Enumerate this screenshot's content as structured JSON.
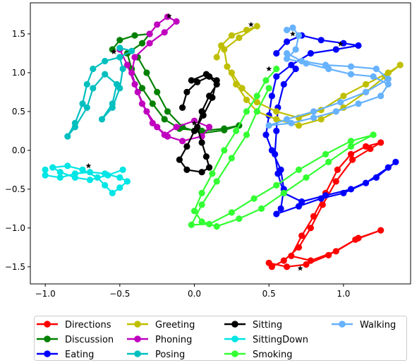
{
  "chart_data": {
    "type": "line",
    "title": "",
    "xlabel": "",
    "ylabel": "",
    "xlim": [
      -1.1,
      1.45
    ],
    "ylim": [
      -1.72,
      1.9
    ],
    "xticks": [
      -1.0,
      -0.5,
      0.0,
      0.5,
      1.0
    ],
    "xtick_labels": [
      "−1.0",
      "−0.5",
      "0.0",
      "0.5",
      "1.0"
    ],
    "yticks": [
      -1.5,
      -1.0,
      -0.5,
      0.0,
      0.5,
      1.0,
      1.5
    ],
    "ytick_labels": [
      "−1.5",
      "−1.0",
      "−0.5",
      "0.0",
      "0.5",
      "1.0",
      "1.5"
    ],
    "grid": false,
    "legend": {
      "placement": "bottom",
      "columns": 4
    },
    "series": [
      {
        "name": "Directions",
        "color": "#ff0000",
        "start": [
          0.71,
          -1.52
        ],
        "points": [
          [
            0.5,
            -1.45
          ],
          [
            0.62,
            -1.5
          ],
          [
            0.75,
            -1.47
          ],
          [
            0.9,
            -1.35
          ],
          [
            1.08,
            -1.15
          ],
          [
            1.25,
            -1.03
          ],
          [
            1.1,
            -1.13
          ],
          [
            0.95,
            -1.3
          ],
          [
            0.78,
            -1.42
          ],
          [
            0.65,
            -1.36
          ],
          [
            0.72,
            -1.1
          ],
          [
            0.8,
            -0.85
          ],
          [
            0.88,
            -0.55
          ],
          [
            0.96,
            -0.25
          ],
          [
            1.05,
            -0.05
          ],
          [
            1.15,
            0.05
          ],
          [
            1.25,
            0.1
          ],
          [
            1.18,
            0.02
          ],
          [
            1.06,
            -0.12
          ],
          [
            0.95,
            -0.4
          ],
          [
            0.86,
            -0.7
          ],
          [
            0.78,
            -1.0
          ],
          [
            0.7,
            -1.25
          ],
          [
            0.6,
            -1.42
          ],
          [
            0.52,
            -1.5
          ]
        ]
      },
      {
        "name": "Discussion",
        "color": "#008000",
        "start": [
          -0.54,
          1.27
        ],
        "points": [
          [
            -0.55,
            1.3
          ],
          [
            -0.5,
            1.42
          ],
          [
            -0.4,
            1.48
          ],
          [
            -0.3,
            1.5
          ],
          [
            -0.35,
            1.38
          ],
          [
            -0.45,
            1.25
          ],
          [
            -0.42,
            1.05
          ],
          [
            -0.35,
            0.8
          ],
          [
            -0.28,
            0.6
          ],
          [
            -0.2,
            0.4
          ],
          [
            -0.1,
            0.28
          ],
          [
            0.05,
            0.25
          ],
          [
            0.2,
            0.28
          ],
          [
            0.3,
            0.32
          ],
          [
            0.2,
            0.26
          ],
          [
            0.05,
            0.22
          ],
          [
            -0.08,
            0.3
          ],
          [
            -0.18,
            0.5
          ],
          [
            -0.25,
            0.75
          ],
          [
            -0.32,
            1.0
          ],
          [
            -0.38,
            1.2
          ]
        ]
      },
      {
        "name": "Eating",
        "color": "#0000ff",
        "start": [
          0.98,
          1.37
        ],
        "points": [
          [
            0.55,
            1.25
          ],
          [
            0.62,
            1.4
          ],
          [
            0.72,
            1.48
          ],
          [
            0.85,
            1.42
          ],
          [
            1.0,
            1.38
          ],
          [
            1.1,
            1.35
          ],
          [
            0.95,
            1.3
          ],
          [
            0.78,
            1.25
          ],
          [
            0.65,
            1.1
          ],
          [
            0.55,
            0.95
          ],
          [
            0.52,
            0.7
          ],
          [
            0.5,
            0.45
          ],
          [
            0.48,
            0.2
          ],
          [
            0.52,
            0.0
          ],
          [
            0.58,
            -0.25
          ],
          [
            0.6,
            -0.5
          ],
          [
            0.58,
            -0.75
          ],
          [
            0.55,
            -0.82
          ],
          [
            0.7,
            -0.72
          ],
          [
            0.85,
            -0.62
          ],
          [
            1.0,
            -0.55
          ],
          [
            1.15,
            -0.42
          ],
          [
            1.3,
            -0.22
          ],
          [
            1.35,
            -0.15
          ],
          [
            1.22,
            -0.35
          ],
          [
            1.05,
            -0.5
          ],
          [
            0.88,
            -0.58
          ],
          [
            0.72,
            -0.66
          ],
          [
            0.6,
            -0.55
          ],
          [
            0.56,
            -0.3
          ],
          [
            0.54,
            -0.05
          ],
          [
            0.55,
            0.25
          ],
          [
            0.56,
            0.55
          ],
          [
            0.6,
            0.85
          ],
          [
            0.68,
            1.05
          ]
        ]
      },
      {
        "name": "Greeting",
        "color": "#bfbf00",
        "start": [
          0.38,
          1.62
        ],
        "points": [
          [
            0.15,
            1.2
          ],
          [
            0.18,
            1.35
          ],
          [
            0.25,
            1.48
          ],
          [
            0.35,
            1.55
          ],
          [
            0.42,
            1.6
          ],
          [
            0.3,
            1.45
          ],
          [
            0.2,
            1.3
          ],
          [
            0.22,
            1.08
          ],
          [
            0.28,
            0.85
          ],
          [
            0.35,
            0.65
          ],
          [
            0.42,
            0.5
          ],
          [
            0.55,
            0.4
          ],
          [
            0.7,
            0.32
          ],
          [
            0.85,
            0.4
          ],
          [
            1.0,
            0.55
          ],
          [
            1.15,
            0.75
          ],
          [
            1.28,
            0.95
          ],
          [
            1.38,
            1.1
          ],
          [
            1.3,
            1.0
          ],
          [
            1.15,
            0.85
          ],
          [
            1.0,
            0.7
          ],
          [
            0.85,
            0.52
          ],
          [
            0.7,
            0.42
          ],
          [
            0.55,
            0.5
          ],
          [
            0.42,
            0.62
          ],
          [
            0.32,
            0.8
          ],
          [
            0.25,
            1.0
          ]
        ]
      },
      {
        "name": "Phoning",
        "color": "#bf00bf",
        "start": [
          -0.17,
          1.73
        ],
        "points": [
          [
            -0.3,
            1.5
          ],
          [
            -0.25,
            1.62
          ],
          [
            -0.18,
            1.72
          ],
          [
            -0.12,
            1.66
          ],
          [
            -0.2,
            1.52
          ],
          [
            -0.3,
            1.38
          ],
          [
            -0.4,
            1.2
          ],
          [
            -0.42,
            1.0
          ],
          [
            -0.38,
            0.75
          ],
          [
            -0.32,
            0.5
          ],
          [
            -0.25,
            0.3
          ],
          [
            -0.18,
            0.18
          ],
          [
            -0.08,
            0.12
          ],
          [
            0.05,
            0.18
          ],
          [
            0.1,
            0.3
          ],
          [
            0.0,
            0.38
          ],
          [
            -0.12,
            0.3
          ],
          [
            -0.2,
            0.2
          ],
          [
            -0.28,
            0.35
          ],
          [
            -0.35,
            0.6
          ],
          [
            -0.4,
            0.85
          ],
          [
            -0.45,
            1.1
          ],
          [
            -0.5,
            1.3
          ]
        ]
      },
      {
        "name": "Posing",
        "color": "#00bfbf",
        "start": [
          -0.54,
          1.27
        ],
        "points": [
          [
            -0.5,
            1.32
          ],
          [
            -0.42,
            1.28
          ],
          [
            -0.5,
            1.2
          ],
          [
            -0.6,
            1.15
          ],
          [
            -0.68,
            1.05
          ],
          [
            -0.72,
            0.85
          ],
          [
            -0.75,
            0.6
          ],
          [
            -0.8,
            0.35
          ],
          [
            -0.85,
            0.18
          ],
          [
            -0.8,
            0.3
          ],
          [
            -0.72,
            0.55
          ],
          [
            -0.68,
            0.8
          ],
          [
            -0.6,
            0.98
          ],
          [
            -0.52,
            0.85
          ],
          [
            -0.55,
            0.6
          ],
          [
            -0.62,
            0.4
          ],
          [
            -0.55,
            0.55
          ],
          [
            -0.5,
            0.8
          ],
          [
            -0.48,
            1.05
          ],
          [
            -0.5,
            1.2
          ]
        ]
      },
      {
        "name": "Sitting",
        "color": "#000000",
        "start": [
          0.0,
          0.35
        ],
        "points": [
          [
            -0.08,
            0.55
          ],
          [
            -0.05,
            0.75
          ],
          [
            0.02,
            0.88
          ],
          [
            0.1,
            0.95
          ],
          [
            0.15,
            0.85
          ],
          [
            0.1,
            0.7
          ],
          [
            0.05,
            0.5
          ],
          [
            0.02,
            0.3
          ],
          [
            0.05,
            0.1
          ],
          [
            0.08,
            -0.08
          ],
          [
            0.1,
            -0.22
          ],
          [
            0.05,
            -0.28
          ],
          [
            -0.05,
            -0.25
          ],
          [
            -0.1,
            -0.12
          ],
          [
            -0.05,
            0.05
          ],
          [
            0.0,
            0.25
          ],
          [
            0.06,
            0.45
          ],
          [
            0.12,
            0.68
          ],
          [
            0.15,
            0.9
          ],
          [
            0.08,
            0.98
          ],
          [
            -0.02,
            0.9
          ]
        ]
      },
      {
        "name": "SittingDown",
        "color": "#00e5e5",
        "start": [
          -0.71,
          -0.2
        ],
        "points": [
          [
            -1.0,
            -0.25
          ],
          [
            -1.0,
            -0.32
          ],
          [
            -0.9,
            -0.35
          ],
          [
            -0.8,
            -0.3
          ],
          [
            -0.7,
            -0.28
          ],
          [
            -0.6,
            -0.3
          ],
          [
            -0.5,
            -0.35
          ],
          [
            -0.45,
            -0.4
          ],
          [
            -0.5,
            -0.48
          ],
          [
            -0.55,
            -0.55
          ],
          [
            -0.6,
            -0.45
          ],
          [
            -0.65,
            -0.35
          ],
          [
            -0.75,
            -0.25
          ],
          [
            -0.85,
            -0.2
          ],
          [
            -0.95,
            -0.22
          ],
          [
            -0.9,
            -0.28
          ],
          [
            -0.8,
            -0.35
          ],
          [
            -0.7,
            -0.38
          ],
          [
            -0.58,
            -0.32
          ],
          [
            -0.48,
            -0.25
          ]
        ]
      },
      {
        "name": "Smoking",
        "color": "#33ff33",
        "start": [
          0.5,
          1.05
        ],
        "points": [
          [
            0.55,
            1.05
          ],
          [
            0.48,
            0.9
          ],
          [
            0.42,
            0.7
          ],
          [
            0.35,
            0.5
          ],
          [
            0.28,
            0.25
          ],
          [
            0.2,
            0.0
          ],
          [
            0.12,
            -0.3
          ],
          [
            0.05,
            -0.55
          ],
          [
            0.0,
            -0.78
          ],
          [
            0.05,
            -0.92
          ],
          [
            0.15,
            -0.98
          ],
          [
            0.3,
            -0.88
          ],
          [
            0.45,
            -0.75
          ],
          [
            0.6,
            -0.55
          ],
          [
            0.75,
            -0.35
          ],
          [
            0.9,
            -0.15
          ],
          [
            1.05,
            0.05
          ],
          [
            1.2,
            0.2
          ],
          [
            1.05,
            0.12
          ],
          [
            0.88,
            -0.05
          ],
          [
            0.7,
            -0.25
          ],
          [
            0.55,
            -0.45
          ],
          [
            0.4,
            -0.62
          ],
          [
            0.25,
            -0.8
          ],
          [
            0.1,
            -0.95
          ],
          [
            -0.02,
            -0.96
          ],
          [
            0.05,
            -0.7
          ],
          [
            0.15,
            -0.4
          ],
          [
            0.25,
            -0.1
          ],
          [
            0.35,
            0.2
          ],
          [
            0.42,
            0.5
          ],
          [
            0.5,
            0.8
          ]
        ]
      },
      {
        "name": "Walking",
        "color": "#66b2ff",
        "start": [
          0.66,
          1.5
        ],
        "points": [
          [
            0.62,
            1.55
          ],
          [
            0.66,
            1.58
          ],
          [
            0.7,
            1.48
          ],
          [
            0.68,
            1.3
          ],
          [
            0.62,
            1.18
          ],
          [
            0.75,
            1.12
          ],
          [
            0.9,
            1.05
          ],
          [
            1.05,
            0.98
          ],
          [
            1.2,
            0.95
          ],
          [
            1.3,
            0.85
          ],
          [
            1.25,
            0.7
          ],
          [
            1.1,
            0.6
          ],
          [
            0.95,
            0.5
          ],
          [
            0.8,
            0.42
          ],
          [
            0.65,
            0.35
          ],
          [
            0.5,
            0.32
          ],
          [
            0.62,
            0.4
          ],
          [
            0.8,
            0.5
          ],
          [
            0.98,
            0.62
          ],
          [
            1.15,
            0.75
          ],
          [
            1.3,
            0.92
          ],
          [
            1.22,
            1.05
          ],
          [
            1.05,
            1.08
          ],
          [
            0.88,
            1.1
          ],
          [
            0.72,
            1.15
          ],
          [
            0.62,
            1.25
          ]
        ]
      }
    ]
  }
}
